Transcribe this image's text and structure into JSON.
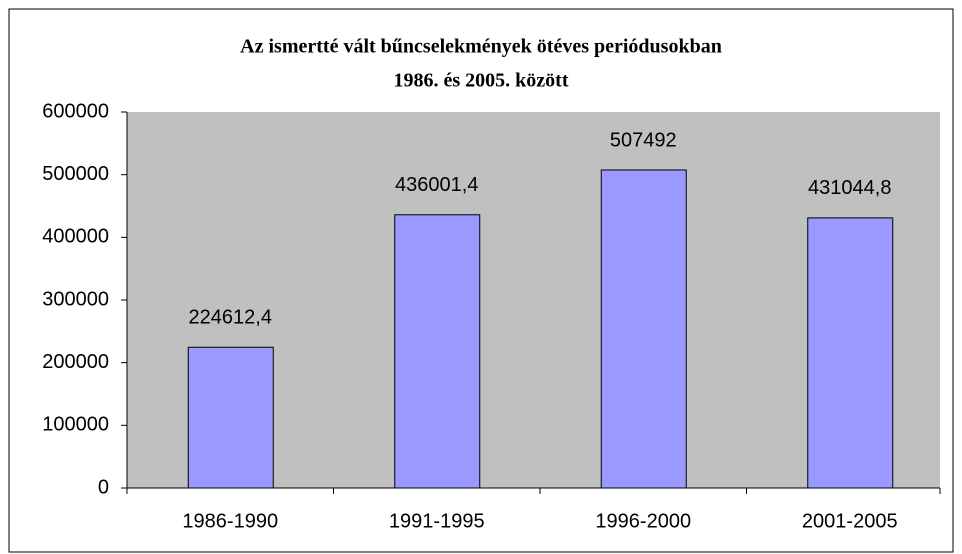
{
  "chart_data": {
    "type": "bar",
    "title": "Az ismertté vált bűncselekmények ötéves periódusokban",
    "subtitle": "1986. és 2005. között",
    "categories": [
      "1986-1990",
      "1991-1995",
      "1996-2000",
      "2001-2005"
    ],
    "values": [
      224612.4,
      436001.4,
      507492,
      431044.8
    ],
    "value_labels": [
      "224612,4",
      "436001,4",
      "507492",
      "431044,8"
    ],
    "color": "#9999ff",
    "ylim": [
      0,
      600000
    ],
    "yticks": [
      0,
      100000,
      200000,
      300000,
      400000,
      500000,
      600000
    ],
    "grid": false
  }
}
